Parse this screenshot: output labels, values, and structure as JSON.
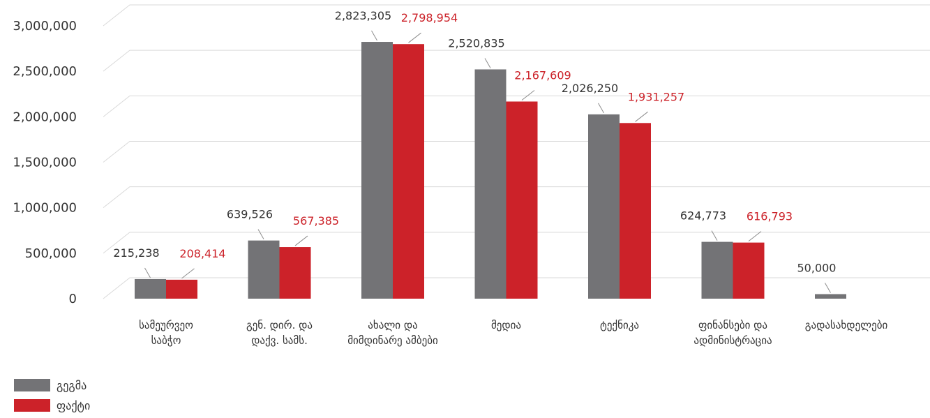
{
  "chart_data": {
    "type": "bar",
    "categories": [
      [
        "სამეურვეო",
        "საბჭო"
      ],
      [
        "გენ. დირ. და",
        "დაქვ. სამს."
      ],
      [
        "ახალი და",
        "მიმდინარე ამბები"
      ],
      [
        "მედია"
      ],
      [
        "ტექნიკა"
      ],
      [
        "ფინანსები და",
        "ადმინისტრაცია"
      ],
      [
        "გადასახდელები"
      ]
    ],
    "series": [
      {
        "name": "გეგმა",
        "color": "#737376",
        "values": [
          215238,
          639526,
          2823305,
          2520835,
          2026250,
          624773,
          50000
        ],
        "labels": [
          "215,238",
          "639,526",
          "2,823,305",
          "2,520,835",
          "2,026,250",
          "624,773",
          "50,000"
        ]
      },
      {
        "name": "ფაქტი",
        "color": "#cc2229",
        "values": [
          208414,
          567385,
          2798954,
          2167609,
          1931257,
          616793,
          null
        ],
        "labels": [
          "208,414",
          "567,385",
          "2,798,954",
          "2,167,609",
          "1,931,257",
          "616,793",
          null
        ]
      }
    ],
    "y_ticks": [
      "0",
      "500,000",
      "1,000,000",
      "1,500,000",
      "2,000,000",
      "2,500,000",
      "3,000,000"
    ],
    "ylim": [
      0,
      3000000
    ],
    "title": "",
    "xlabel": "",
    "ylabel": "",
    "grid": true,
    "legend_position": "bottom-left"
  },
  "colors": {
    "plan": "#737376",
    "actual": "#cc2229",
    "grid": "#d9d9d9",
    "text": "#333333",
    "label_actual": "#cc2229"
  }
}
